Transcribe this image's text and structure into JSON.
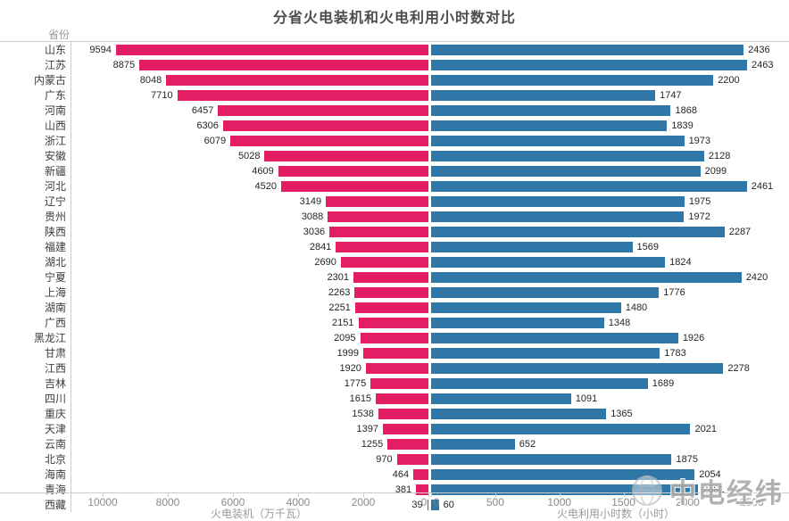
{
  "title": "分省火电装机和火电利用小时数对比",
  "column_header": "省份",
  "watermark": {
    "text": "中电经纬",
    "logo": "globe-logo"
  },
  "colors": {
    "left_bar": "#E31E65",
    "right_bar": "#2F77A6",
    "axis_line": "#cccccc",
    "tick_text": "#8c8c8c",
    "value_text": "#262626"
  },
  "chart_data": {
    "type": "bar",
    "orientation": "bidirectional-horizontal",
    "title": "分省火电装机和火电利用小时数对比",
    "grid": false,
    "legend": "none",
    "categories": [
      "山东",
      "江苏",
      "内蒙古",
      "广东",
      "河南",
      "山西",
      "浙江",
      "安徽",
      "新疆",
      "河北",
      "辽宁",
      "贵州",
      "陕西",
      "福建",
      "湖北",
      "宁夏",
      "上海",
      "湖南",
      "广西",
      "黑龙江",
      "甘肃",
      "江西",
      "吉林",
      "四川",
      "重庆",
      "天津",
      "云南",
      "北京",
      "海南",
      "青海",
      "西藏"
    ],
    "series": [
      {
        "name": "火电装机（万千瓦）",
        "side": "left",
        "color": "#E31E65",
        "axis_ticks": [
          10000,
          8000,
          6000,
          4000,
          2000,
          0
        ],
        "axis_max": 10959,
        "values": [
          9594,
          8875,
          8048,
          7710,
          6457,
          6306,
          6079,
          5028,
          4609,
          4520,
          3149,
          3088,
          3036,
          2841,
          2690,
          2301,
          2263,
          2251,
          2151,
          2095,
          1999,
          1920,
          1775,
          1615,
          1538,
          1397,
          1255,
          970,
          464,
          381,
          39
        ]
      },
      {
        "name": "火电利用小时数（小时）",
        "side": "right",
        "color": "#2F77A6",
        "axis_ticks": [
          0,
          500,
          1000,
          1500,
          2000,
          2500
        ],
        "axis_max": 2790,
        "values": [
          2436,
          2463,
          2200,
          1747,
          1868,
          1839,
          1973,
          2128,
          2099,
          2461,
          1975,
          1972,
          2287,
          1569,
          1824,
          2420,
          1776,
          1480,
          1348,
          1926,
          1783,
          2278,
          1689,
          1091,
          1365,
          2021,
          652,
          1875,
          2054,
          2081,
          60
        ]
      }
    ]
  }
}
